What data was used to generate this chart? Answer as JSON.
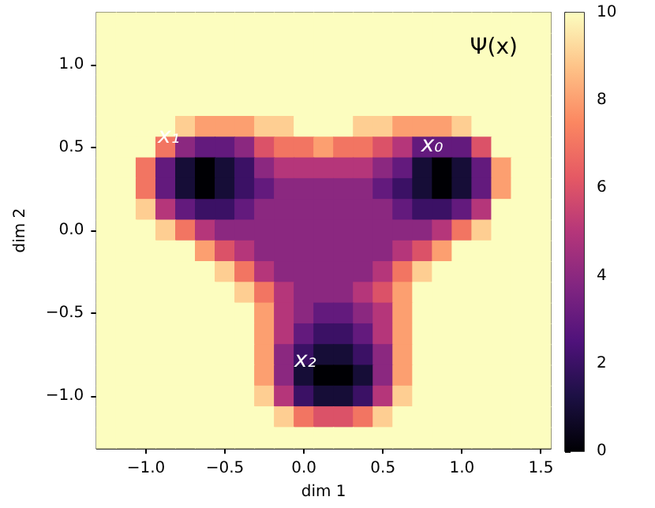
{
  "chart_data": {
    "type": "heatmap",
    "title": "Ψ(x)",
    "xlabel": "dim 1",
    "ylabel": "dim 2",
    "categories": [
      null,
      null,
      "−1.0",
      null,
      null,
      null,
      "−0.5",
      null,
      null,
      null,
      "0.0",
      null,
      null,
      null,
      "0.5",
      null,
      null,
      null,
      "1.0",
      null,
      null,
      null,
      "1.5"
    ],
    "y_categories": [
      null,
      null,
      "1.0",
      null,
      null,
      null,
      "0.5",
      null,
      null,
      null,
      "0.0",
      null,
      null,
      null,
      "−0.5",
      null,
      null,
      null,
      "−1.0",
      null,
      null
    ],
    "clim": [
      0,
      10
    ],
    "cticks": [
      0,
      2,
      4,
      6,
      8,
      10
    ],
    "annotations": [
      "x₀",
      "x₁",
      "x₂"
    ],
    "cells": [
      [
        10,
        10,
        10,
        10,
        10,
        10,
        10,
        10,
        10,
        10,
        10,
        10,
        10,
        10,
        10,
        10,
        10,
        10,
        10,
        10,
        10,
        10,
        10
      ],
      [
        10,
        10,
        10,
        10,
        10,
        10,
        10,
        10,
        10,
        10,
        10,
        10,
        10,
        10,
        10,
        10,
        10,
        10,
        10,
        10,
        10,
        10,
        10
      ],
      [
        10,
        10,
        10,
        10,
        10,
        10,
        10,
        10,
        10,
        10,
        10,
        10,
        10,
        10,
        10,
        10,
        10,
        10,
        10,
        10,
        10,
        10,
        10
      ],
      [
        10,
        10,
        10,
        10,
        10,
        10,
        10,
        10,
        10,
        10,
        10,
        10,
        10,
        10,
        10,
        10,
        10,
        10,
        10,
        10,
        10,
        10,
        10
      ],
      [
        10,
        10,
        10,
        10,
        10,
        10,
        10,
        10,
        10,
        10,
        10,
        10,
        10,
        10,
        10,
        10,
        10,
        10,
        10,
        10,
        10,
        10,
        10
      ],
      [
        10,
        10,
        10,
        10,
        9,
        8,
        8,
        8,
        9,
        9,
        10,
        10,
        10,
        9,
        9,
        8,
        8,
        8,
        9,
        10,
        10,
        10,
        10
      ],
      [
        10,
        10,
        10,
        7,
        4,
        3,
        3,
        4,
        6,
        7,
        7,
        8,
        7,
        7,
        6,
        5,
        3,
        3,
        3,
        6,
        10,
        10,
        10
      ],
      [
        10,
        10,
        7,
        3,
        1,
        0,
        1,
        2,
        4,
        5,
        5,
        5,
        5,
        5,
        4,
        3,
        1,
        0,
        1,
        3,
        8,
        10,
        10
      ],
      [
        10,
        10,
        7,
        3,
        1,
        0,
        1,
        2,
        3,
        4,
        4,
        4,
        4,
        4,
        3,
        2,
        1,
        0,
        1,
        3,
        8,
        10,
        10
      ],
      [
        10,
        10,
        9,
        5,
        3,
        2,
        2,
        3,
        4,
        4,
        4,
        4,
        4,
        4,
        4,
        3,
        2,
        2,
        3,
        5,
        10,
        10,
        10
      ],
      [
        10,
        10,
        10,
        9,
        7,
        5,
        4,
        4,
        4,
        4,
        4,
        4,
        4,
        4,
        4,
        4,
        4,
        5,
        7,
        9,
        10,
        10,
        10
      ],
      [
        10,
        10,
        10,
        10,
        10,
        8,
        6,
        5,
        4,
        4,
        4,
        4,
        4,
        4,
        4,
        5,
        6,
        8,
        10,
        10,
        10,
        10,
        10
      ],
      [
        10,
        10,
        10,
        10,
        10,
        10,
        9,
        7,
        5,
        4,
        4,
        4,
        4,
        4,
        5,
        7,
        9,
        10,
        10,
        10,
        10,
        10,
        10
      ],
      [
        10,
        10,
        10,
        10,
        10,
        10,
        10,
        9,
        7,
        5,
        4,
        4,
        4,
        5,
        6,
        8,
        10,
        10,
        10,
        10,
        10,
        10,
        10
      ],
      [
        10,
        10,
        10,
        10,
        10,
        10,
        10,
        10,
        8,
        5,
        4,
        3,
        3,
        4,
        5,
        8,
        10,
        10,
        10,
        10,
        10,
        10,
        10
      ],
      [
        10,
        10,
        10,
        10,
        10,
        10,
        10,
        10,
        8,
        5,
        3,
        2,
        2,
        3,
        5,
        8,
        10,
        10,
        10,
        10,
        10,
        10,
        10
      ],
      [
        10,
        10,
        10,
        10,
        10,
        10,
        10,
        10,
        8,
        4,
        2,
        1,
        1,
        2,
        4,
        8,
        10,
        10,
        10,
        10,
        10,
        10,
        10
      ],
      [
        10,
        10,
        10,
        10,
        10,
        10,
        10,
        10,
        8,
        4,
        1,
        0,
        0,
        1,
        4,
        8,
        10,
        10,
        10,
        10,
        10,
        10,
        10
      ],
      [
        10,
        10,
        10,
        10,
        10,
        10,
        10,
        10,
        9,
        5,
        2,
        1,
        1,
        2,
        5,
        9,
        10,
        10,
        10,
        10,
        10,
        10,
        10
      ],
      [
        10,
        10,
        10,
        10,
        10,
        10,
        10,
        10,
        10,
        9,
        7,
        6,
        6,
        7,
        9,
        10,
        10,
        10,
        10,
        10,
        10,
        10,
        10
      ],
      [
        10,
        10,
        10,
        10,
        10,
        10,
        10,
        10,
        10,
        10,
        10,
        10,
        10,
        10,
        10,
        10,
        10,
        10,
        10,
        10,
        10,
        10,
        10
      ]
    ]
  }
}
